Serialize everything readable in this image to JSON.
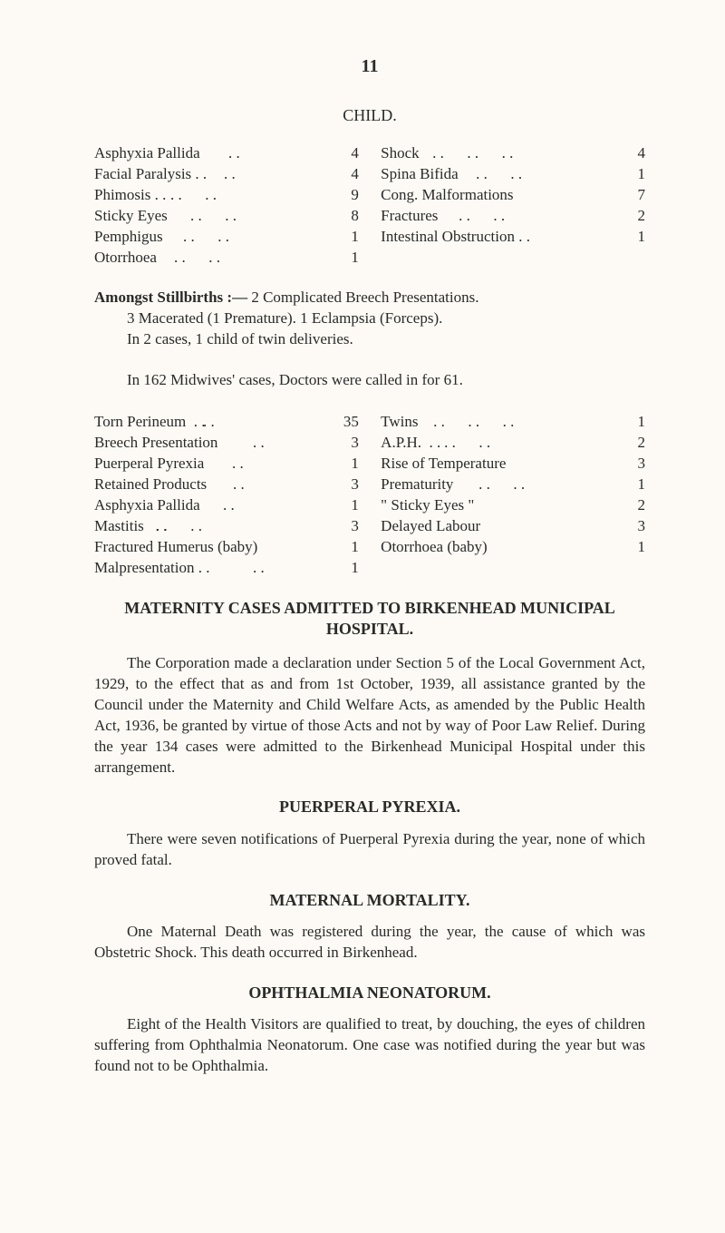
{
  "colors": {
    "background": "#fdfaf5",
    "text": "#2a2a28"
  },
  "typography": {
    "family": "Georgia / serif",
    "body_pt": 12,
    "heading_pt": 13,
    "pagenum_pt": 14
  },
  "page_number": "11",
  "child_section": {
    "title": "CHILD.",
    "left": [
      {
        "label": "Asphyxia Pallida",
        "dots": ". .",
        "value": "4"
      },
      {
        "label": "Facial Paralysis . .",
        "dots": ". .",
        "value": "4"
      },
      {
        "label": "Phimosis . .",
        "dots": ". .      . .",
        "value": "9"
      },
      {
        "label": "Sticky Eyes",
        "dots": ". .      . .",
        "value": "8"
      },
      {
        "label": "Pemphigus",
        "dots": ". .      . .",
        "value": "1"
      },
      {
        "label": "Otorrhoea",
        "dots": ". .      . .",
        "value": "1"
      }
    ],
    "right": [
      {
        "label": "Shock",
        "dots": ". .      . .      . .",
        "value": "4"
      },
      {
        "label": "Spina Bifida",
        "dots": ". .      . .",
        "value": "1"
      },
      {
        "label": "Cong. Malformations",
        "dots": ". .",
        "value": "7"
      },
      {
        "label": "Fractures",
        "dots": ". .      . .",
        "value": "2"
      },
      {
        "label": "Intestinal Obstruction . .",
        "dots": "",
        "value": "1"
      }
    ]
  },
  "stillbirths_para": {
    "heading": "Amongst   Stillbirths :—",
    "line1_rest": "  2   Complicated   Breech   Presentations.",
    "line2": "3  Macerated   (1   Premature).     1   Eclampsia   (Forceps).",
    "line3": "In 2 cases, 1 child of twin deliveries."
  },
  "midwives_intro": "In 162 Midwives' cases, Doctors were called in for 61.",
  "midwives": {
    "left": [
      {
        "label": "Torn Perineum  . .",
        "dots": ". .",
        "value": "35"
      },
      {
        "label": "Breech Presentation",
        "dots": ". .",
        "value": "3"
      },
      {
        "label": "Puerperal Pyrexia",
        "dots": ". .",
        "value": "1"
      },
      {
        "label": "Retained Products",
        "dots": ". .",
        "value": "3"
      },
      {
        "label": "Asphyxia Pallida",
        "dots": ". .",
        "value": "1"
      },
      {
        "label": "Mastitis   . .",
        "dots": ". .      . .",
        "value": "3"
      },
      {
        "label": "Fractured Humerus (baby)",
        "dots": "",
        "value": "1"
      },
      {
        "label": "Malpresentation . .",
        "dots": ". .",
        "value": "1"
      }
    ],
    "right": [
      {
        "label": "Twins",
        "dots": ". .      . .      . .",
        "value": "1"
      },
      {
        "label": "A.P.H.  . .",
        "dots": ". .      . .",
        "value": "2"
      },
      {
        "label": "Rise of Temperature",
        "dots": ". .",
        "value": "3"
      },
      {
        "label": "Prematurity",
        "dots": ". .      . .",
        "value": "1"
      },
      {
        "label": "\" Sticky Eyes \"",
        "dots": ". .",
        "value": "2"
      },
      {
        "label": "Delayed Labour",
        "dots": ". .",
        "value": "3"
      },
      {
        "label": "Otorrhoea (baby)",
        "dots": ". .",
        "value": "1"
      }
    ]
  },
  "sections": {
    "maternity_cases": {
      "title": "MATERNITY CASES ADMITTED TO BIRKENHEAD MUNICIPAL HOSPITAL.",
      "body": "The Corporation made a declaration under Section 5 of the Local Government Act, 1929, to the effect that as and from 1st October, 1939, all assistance granted by the Council under the Maternity and Child Welfare Acts, as amended by the Public Health Act, 1936, be granted by virtue of those Acts and not by way of Poor Law Relief.  During the year 134 cases were admitted to the Birkenhead Municipal Hospital under this arrangement."
    },
    "puerperal_pyrexia": {
      "title": "PUERPERAL PYREXIA.",
      "body": "There were seven notifications of Puerperal Pyrexia during the year, none of which proved fatal."
    },
    "maternal_mortality": {
      "title": "MATERNAL MORTALITY.",
      "body": "One Maternal Death was registered during the year, the cause of which was Obstetric Shock.  This death occurred in Birkenhead."
    },
    "ophthalmia": {
      "title": "OPHTHALMIA NEONATORUM.",
      "body": "Eight of the Health Visitors are qualified to treat, by douching, the eyes of children suffering from Ophthalmia Neonatorum.  One case was notified during the year but was found not to be Ophthalmia."
    }
  }
}
